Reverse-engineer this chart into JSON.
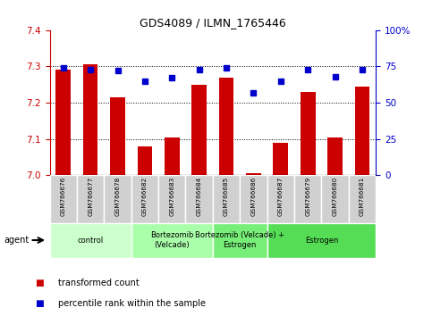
{
  "title": "GDS4089 / ILMN_1765446",
  "samples": [
    "GSM766676",
    "GSM766677",
    "GSM766678",
    "GSM766682",
    "GSM766683",
    "GSM766684",
    "GSM766685",
    "GSM766686",
    "GSM766687",
    "GSM766679",
    "GSM766680",
    "GSM766681"
  ],
  "bar_values": [
    7.29,
    7.305,
    7.215,
    7.08,
    7.105,
    7.25,
    7.27,
    7.005,
    7.09,
    7.23,
    7.105,
    7.245
  ],
  "dot_values": [
    74,
    73,
    72,
    65,
    67,
    73,
    74,
    57,
    65,
    73,
    68,
    73
  ],
  "bar_bottom": 7.0,
  "ylim_left": [
    7.0,
    7.4
  ],
  "ylim_right": [
    0,
    100
  ],
  "yticks_left": [
    7.0,
    7.1,
    7.2,
    7.3,
    7.4
  ],
  "yticks_right": [
    0,
    25,
    50,
    75,
    100
  ],
  "bar_color": "#cc0000",
  "dot_color": "#0000cc",
  "agent_groups": [
    {
      "label": "control",
      "start": 0,
      "end": 3,
      "color": "#ccffcc"
    },
    {
      "label": "Bortezomib\n(Velcade)",
      "start": 3,
      "end": 6,
      "color": "#aaffaa"
    },
    {
      "label": "Bortezomib (Velcade) +\nEstrogen",
      "start": 6,
      "end": 8,
      "color": "#77ee77"
    },
    {
      "label": "Estrogen",
      "start": 8,
      "end": 12,
      "color": "#55dd55"
    }
  ],
  "legend_bar_label": "transformed count",
  "legend_dot_label": "percentile rank within the sample",
  "agent_label": "agent",
  "tick_color_left": "#cc0000",
  "tick_color_right": "#0000cc",
  "fig_width": 4.83,
  "fig_height": 3.54,
  "dpi": 100
}
